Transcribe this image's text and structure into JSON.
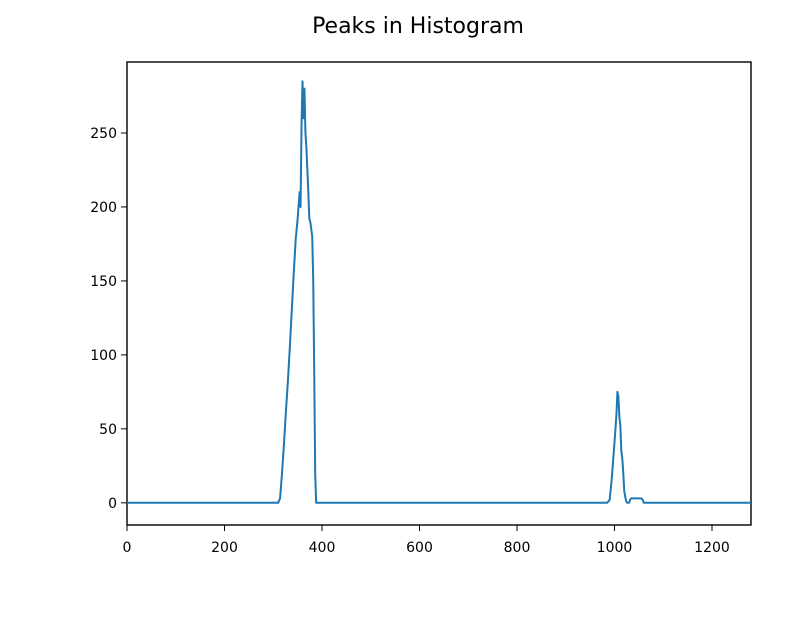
{
  "chart_data": {
    "type": "line",
    "title": "Peaks in Histogram",
    "xlabel": "",
    "ylabel": "",
    "xlim": [
      0,
      1280
    ],
    "ylim": [
      -15,
      298
    ],
    "xticks": [
      0,
      200,
      400,
      600,
      800,
      1000,
      1200
    ],
    "yticks": [
      0,
      50,
      100,
      150,
      200,
      250
    ],
    "grid": false,
    "legend": "none",
    "series": [
      {
        "color": "#1f77b4",
        "x": [
          0,
          310,
          314,
          318,
          322,
          326,
          330,
          334,
          338,
          342,
          346,
          350,
          354,
          356,
          358,
          360,
          362,
          364,
          366,
          368,
          370,
          372,
          374,
          376,
          378,
          380,
          382,
          384,
          386,
          388,
          390,
          392,
          400,
          600,
          985,
          990,
          994,
          998,
          1002,
          1004,
          1006,
          1008,
          1010,
          1012,
          1014,
          1016,
          1018,
          1020,
          1022,
          1024,
          1026,
          1028,
          1030,
          1032,
          1034,
          1036,
          1040,
          1044,
          1050,
          1055,
          1058,
          1060,
          1062,
          1100,
          1280
        ],
        "y": [
          0,
          0,
          3,
          20,
          40,
          62,
          82,
          105,
          130,
          155,
          178,
          192,
          210,
          200,
          255,
          285,
          260,
          280,
          250,
          240,
          225,
          210,
          192,
          190,
          185,
          180,
          150,
          90,
          20,
          0,
          0,
          0,
          0,
          0,
          0,
          2,
          15,
          32,
          50,
          60,
          75,
          72,
          58,
          52,
          35,
          30,
          20,
          8,
          4,
          1,
          0,
          0,
          0,
          2,
          3,
          3,
          3,
          3,
          3,
          3,
          2,
          0,
          0,
          0,
          0
        ]
      }
    ]
  }
}
